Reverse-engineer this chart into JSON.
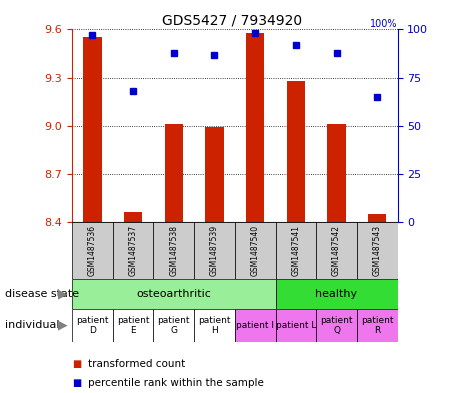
{
  "title": "GDS5427 / 7934920",
  "samples": [
    "GSM1487536",
    "GSM1487537",
    "GSM1487538",
    "GSM1487539",
    "GSM1487540",
    "GSM1487541",
    "GSM1487542",
    "GSM1487543"
  ],
  "red_values": [
    9.55,
    8.46,
    9.01,
    8.99,
    9.58,
    9.28,
    9.01,
    8.45
  ],
  "blue_values": [
    97,
    68,
    88,
    87,
    98,
    92,
    88,
    65
  ],
  "ylim": [
    8.4,
    9.6
  ],
  "yticks": [
    8.4,
    8.7,
    9.0,
    9.3,
    9.6
  ],
  "right_yticks": [
    0,
    25,
    50,
    75,
    100
  ],
  "disease_colors": {
    "osteoarthritic": "#99ee99",
    "healthy": "#33dd33"
  },
  "individuals": [
    {
      "label": "patient\nD",
      "col": 0,
      "color": "#ffffff"
    },
    {
      "label": "patient\nE",
      "col": 1,
      "color": "#ffffff"
    },
    {
      "label": "patient\nG",
      "col": 2,
      "color": "#ffffff"
    },
    {
      "label": "patient\nH",
      "col": 3,
      "color": "#ffffff"
    },
    {
      "label": "patient I",
      "col": 4,
      "color": "#ee77ee"
    },
    {
      "label": "patient L",
      "col": 5,
      "color": "#ee77ee"
    },
    {
      "label": "patient\nQ",
      "col": 6,
      "color": "#ee77ee"
    },
    {
      "label": "patient\nR",
      "col": 7,
      "color": "#ee77ee"
    }
  ],
  "bar_color": "#cc2200",
  "dot_color": "#0000cc",
  "grid_color": "#000000",
  "sample_bg": "#cccccc",
  "left_label_color": "#cc2200",
  "right_label_color": "#0000cc",
  "fig_bg": "#ffffff"
}
